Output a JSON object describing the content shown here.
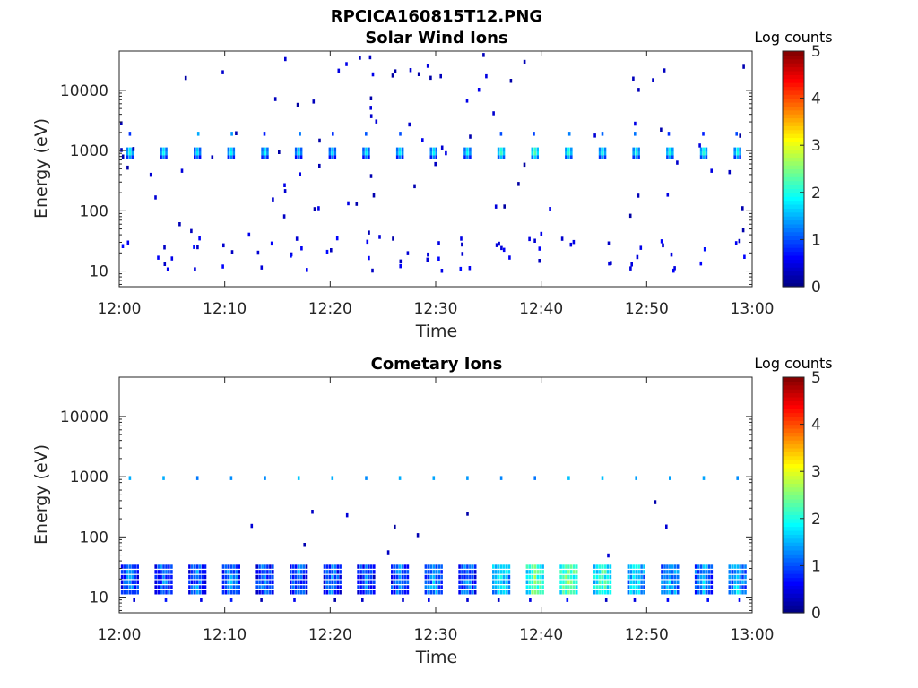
{
  "figure_title": "RPCICA160815T12.PNG",
  "chart_data": [
    {
      "type": "heatmap",
      "title": "Solar Wind Ions",
      "xlabel": "Time",
      "ylabel": "Energy (eV)",
      "x_range": [
        "12:00",
        "13:00"
      ],
      "x_ticks": [
        "12:00",
        "12:10",
        "12:20",
        "12:30",
        "12:40",
        "12:50",
        "13:00"
      ],
      "y_scale": "log",
      "y_range": [
        5.5,
        45000
      ],
      "y_ticks": [
        10,
        100,
        1000,
        10000
      ],
      "y_tick_labels": [
        "10",
        "100",
        "1000",
        "10000"
      ],
      "colorbar": {
        "label": "Log counts",
        "min": 0,
        "max": 5,
        "ticks": [
          "0",
          "1",
          "2",
          "3",
          "4",
          "5"
        ],
        "colormap": "jet"
      },
      "sweep_minutes": [
        0.9,
        4.1,
        7.3,
        10.5,
        13.7,
        16.9,
        20.1,
        23.3,
        26.5,
        29.7,
        32.9,
        36.1,
        39.3,
        42.5,
        45.7,
        48.9,
        52.1,
        55.3,
        58.5
      ],
      "peak_energy_eV": 950,
      "peak_log_counts": [
        2.2,
        2.1,
        2.0,
        2.1,
        2.1,
        2.0,
        2.0,
        2.0,
        2.1,
        2.1,
        2.1,
        2.4,
        2.5,
        2.3,
        2.2,
        2.2,
        2.3,
        2.3,
        2.2
      ],
      "low_energy_band_eV": [
        10,
        35
      ],
      "low_energy_log_counts": 0.5
    },
    {
      "type": "heatmap",
      "title": "Cometary Ions",
      "xlabel": "Time",
      "ylabel": "Energy (eV)",
      "x_range": [
        "12:00",
        "13:00"
      ],
      "x_ticks": [
        "12:00",
        "12:10",
        "12:20",
        "12:30",
        "12:40",
        "12:50",
        "13:00"
      ],
      "y_scale": "log",
      "y_range": [
        5.5,
        45000
      ],
      "y_ticks": [
        10,
        100,
        1000,
        10000
      ],
      "y_tick_labels": [
        "10",
        "100",
        "1000",
        "10000"
      ],
      "colorbar": {
        "label": "Log counts",
        "min": 0,
        "max": 5,
        "ticks": [
          "0",
          "1",
          "2",
          "3",
          "4",
          "5"
        ],
        "colormap": "jet"
      },
      "sweep_minutes": [
        0.9,
        4.1,
        7.3,
        10.5,
        13.7,
        16.9,
        20.1,
        23.3,
        26.5,
        29.7,
        32.9,
        36.1,
        39.3,
        42.5,
        45.7,
        48.9,
        52.1,
        55.3,
        58.5
      ],
      "low_energy_band_eV": [
        12,
        32
      ],
      "low_energy_log_counts": [
        1.3,
        1.2,
        1.2,
        1.3,
        1.2,
        1.2,
        1.2,
        1.1,
        1.3,
        1.4,
        1.3,
        1.9,
        2.4,
        2.5,
        2.2,
        1.8,
        1.6,
        1.5,
        1.6
      ],
      "line_950eV_log_counts": 1.4
    }
  ]
}
